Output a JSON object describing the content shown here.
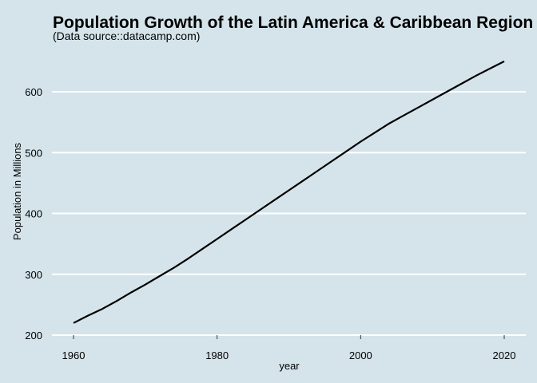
{
  "chart_data": {
    "type": "line",
    "title": "Population Growth of the Latin America & Caribbean Region",
    "subtitle": "(Data source::datacamp.com)",
    "xlabel": "year",
    "ylabel": "Population in Millions",
    "xlim": [
      1960,
      2020
    ],
    "ylim": [
      200,
      660
    ],
    "xticks": [
      1960,
      1980,
      2000,
      2020
    ],
    "yticks": [
      200,
      300,
      400,
      500,
      600
    ],
    "grid": "horizontal",
    "legend": "none",
    "colors": {
      "background": "#d5e4eb",
      "grid": "#ffffff",
      "line": "#000000"
    },
    "series": [
      {
        "x": [
          1960,
          1962,
          1964,
          1966,
          1968,
          1970,
          1972,
          1974,
          1976,
          1978,
          1980,
          1982,
          1984,
          1986,
          1988,
          1990,
          1992,
          1994,
          1996,
          1998,
          2000,
          2002,
          2004,
          2006,
          2008,
          2010,
          2012,
          2014,
          2016,
          2018,
          2020
        ],
        "values": [
          220,
          232,
          243,
          256,
          270,
          283,
          297,
          311,
          326,
          342,
          358,
          374,
          390,
          406,
          422,
          438,
          454,
          470,
          486,
          502,
          518,
          533,
          548,
          561,
          574,
          587,
          600,
          613,
          626,
          638,
          650
        ]
      }
    ]
  }
}
